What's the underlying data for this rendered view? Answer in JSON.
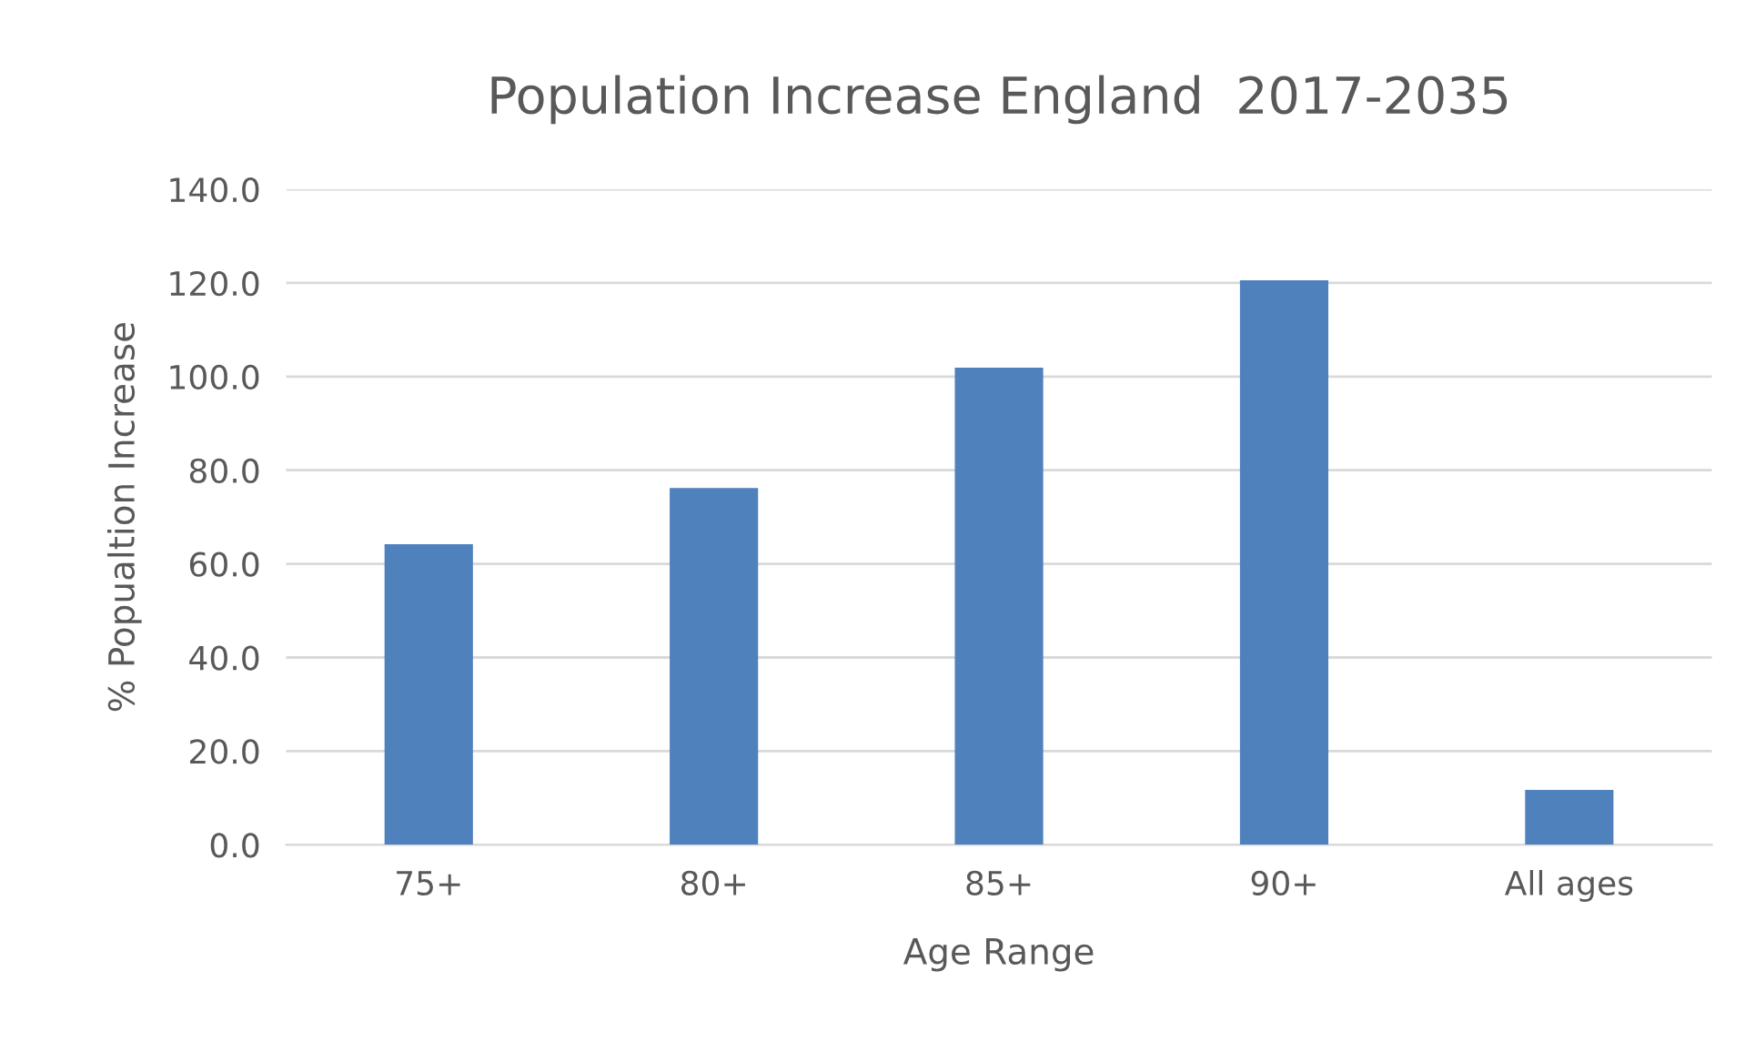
{
  "chart_data": {
    "type": "bar",
    "title": "Population Increase England  2017-2035",
    "xlabel": "Age Range",
    "ylabel": "% Popualtion Increase",
    "categories": [
      "75+",
      "80+",
      "85+",
      "90+",
      "All ages"
    ],
    "values": [
      64.2,
      76.2,
      101.9,
      120.6,
      11.7
    ],
    "color": "#4f81bd",
    "ylim": [
      0,
      140
    ],
    "yticks": [
      {
        "value": 0,
        "label": "0.0"
      },
      {
        "value": 20,
        "label": "20.0"
      },
      {
        "value": 40,
        "label": "40.0"
      },
      {
        "value": 60,
        "label": "60.0"
      },
      {
        "value": 80,
        "label": "80.0"
      },
      {
        "value": 100,
        "label": "100.0"
      },
      {
        "value": 120,
        "label": "120.0"
      },
      {
        "value": 140,
        "label": "140.0"
      }
    ],
    "grid": "y",
    "legend": false
  }
}
